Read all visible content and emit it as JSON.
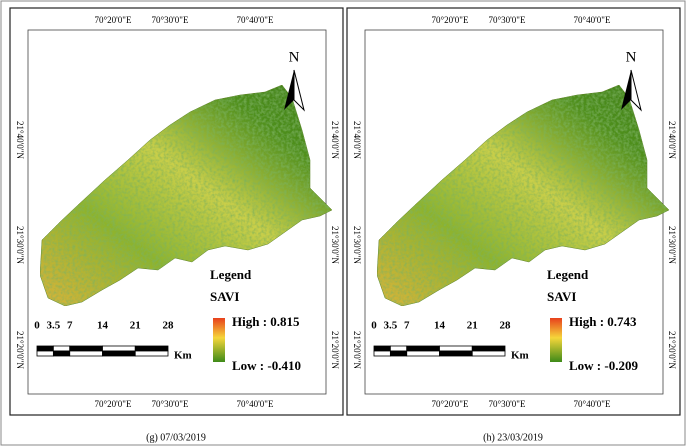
{
  "panels": [
    {
      "caption": "(g) 07/03/2019",
      "top_labels": [
        "70°20'0\"E",
        "70°30'0\"E",
        "70°40'0\"E"
      ],
      "bottom_labels": [
        "70°20'0\"E",
        "70°30'0\"E",
        "70°40'0\"E"
      ],
      "left_labels": [
        "21°40'0\"N",
        "21°30'0\"N",
        "21°20'0\"N"
      ],
      "right_labels": [
        "21°40'0\"N",
        "21°30'0\"N",
        "21°20'0\"N"
      ],
      "north": "N",
      "legend_title": "Legend",
      "legend_name": "SAVI",
      "high": "High : 0.815",
      "low": "Low : -0.410",
      "scale_labels": [
        0,
        3.5,
        7,
        14,
        21,
        28
      ],
      "scale_unit": "Km"
    },
    {
      "caption": "(h) 23/03/2019",
      "top_labels": [
        "70°20'0\"E",
        "70°30'0\"E",
        "70°40'0\"E"
      ],
      "bottom_labels": [
        "70°20'0\"E",
        "70°30'0\"E",
        "70°40'0\"E"
      ],
      "left_labels": [
        "21°40'0\"N",
        "21°30'0\"N",
        "21°20'0\"N"
      ],
      "right_labels": [
        "21°40'0\"N",
        "21°30'0\"N",
        "21°20'0\"N"
      ],
      "north": "N",
      "legend_title": "Legend",
      "legend_name": "SAVI",
      "high": "High : 0.743",
      "low": "Low : -0.209",
      "scale_labels": [
        0,
        3.5,
        7,
        14,
        21,
        28
      ],
      "scale_unit": "Km"
    }
  ]
}
